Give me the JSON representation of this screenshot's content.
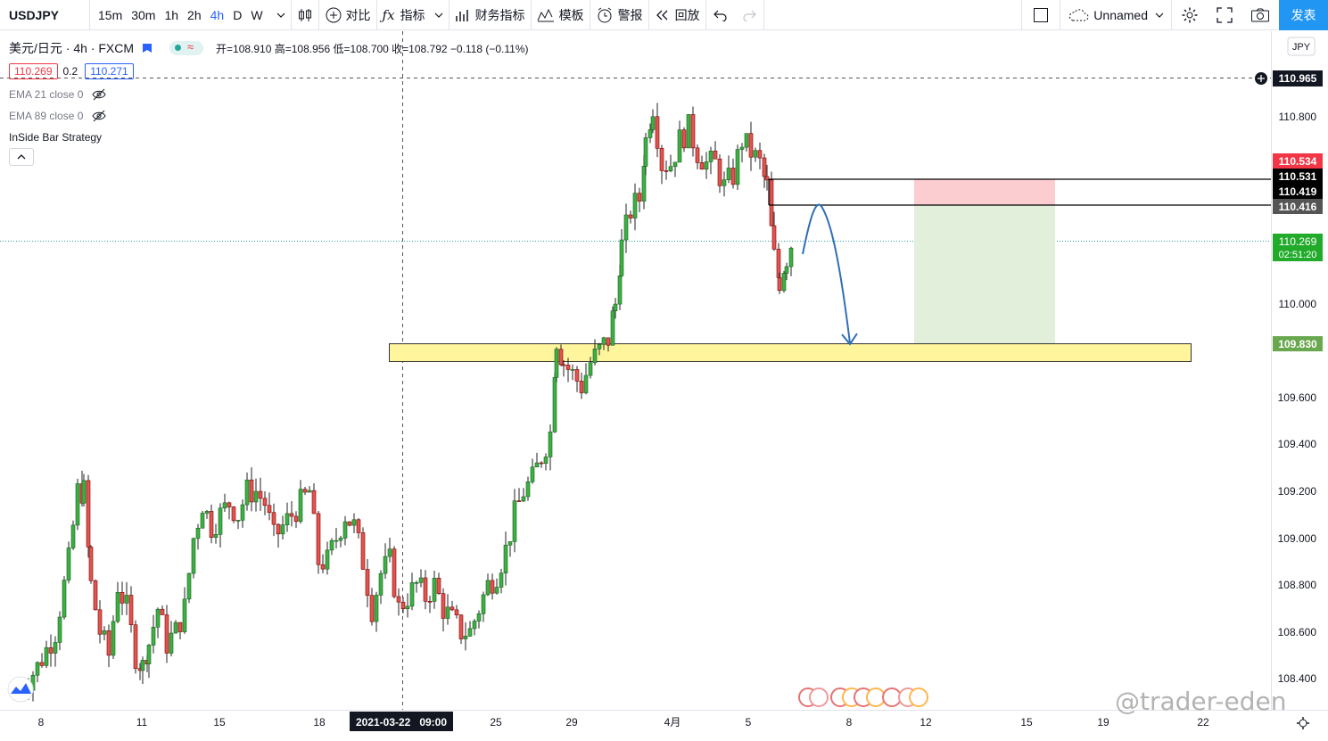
{
  "toolbar": {
    "symbol": "USDJPY",
    "timeframes": [
      "15m",
      "30m",
      "1h",
      "2h",
      "4h",
      "D",
      "W"
    ],
    "active_timeframe": "4h",
    "compare_label": "对比",
    "indicators_label": "指标",
    "financials_label": "财务指标",
    "templates_label": "模板",
    "alert_label": "警报",
    "replay_label": "回放",
    "layout_name": "Unnamed",
    "publish_label": "发表"
  },
  "legend": {
    "title": "美元/日元 · 4h · FXCM",
    "ohlc": "开=108.910 高=108.956 低=108.700 收=108.792 −0.118 (−0.11%)",
    "bid": "110.269",
    "spread": "0.2",
    "ask": "110.271",
    "ema21": "EMA 21 close 0",
    "ema89": "EMA 89 close 0",
    "strategy": "InSide Bar Strategy"
  },
  "price_axis": {
    "currency": "JPY",
    "ticks": [
      "110.800",
      "110.000",
      "109.600",
      "109.400",
      "109.200",
      "109.000",
      "108.800",
      "108.600",
      "108.400"
    ],
    "labels": {
      "crosshair": "110.965",
      "red": "110.534",
      "line1": "110.531",
      "line2": "110.419",
      "line3": "110.416",
      "last": "110.269",
      "countdown": "02:51:20",
      "support": "109.830"
    }
  },
  "time_axis": {
    "ticks": [
      "8",
      "11",
      "15",
      "18",
      "25",
      "29",
      "4月",
      "5",
      "8",
      "12",
      "15",
      "19",
      "22"
    ],
    "crosshair_label": "2021-03-22   09:00"
  },
  "watermark": "@trader-eden",
  "colors": {
    "up": "#26a69a",
    "up_fill": "#3cb043",
    "down": "#ef5350",
    "down_fill": "#e05550",
    "zone": "#fff59d",
    "accent": "#2962ff"
  }
}
